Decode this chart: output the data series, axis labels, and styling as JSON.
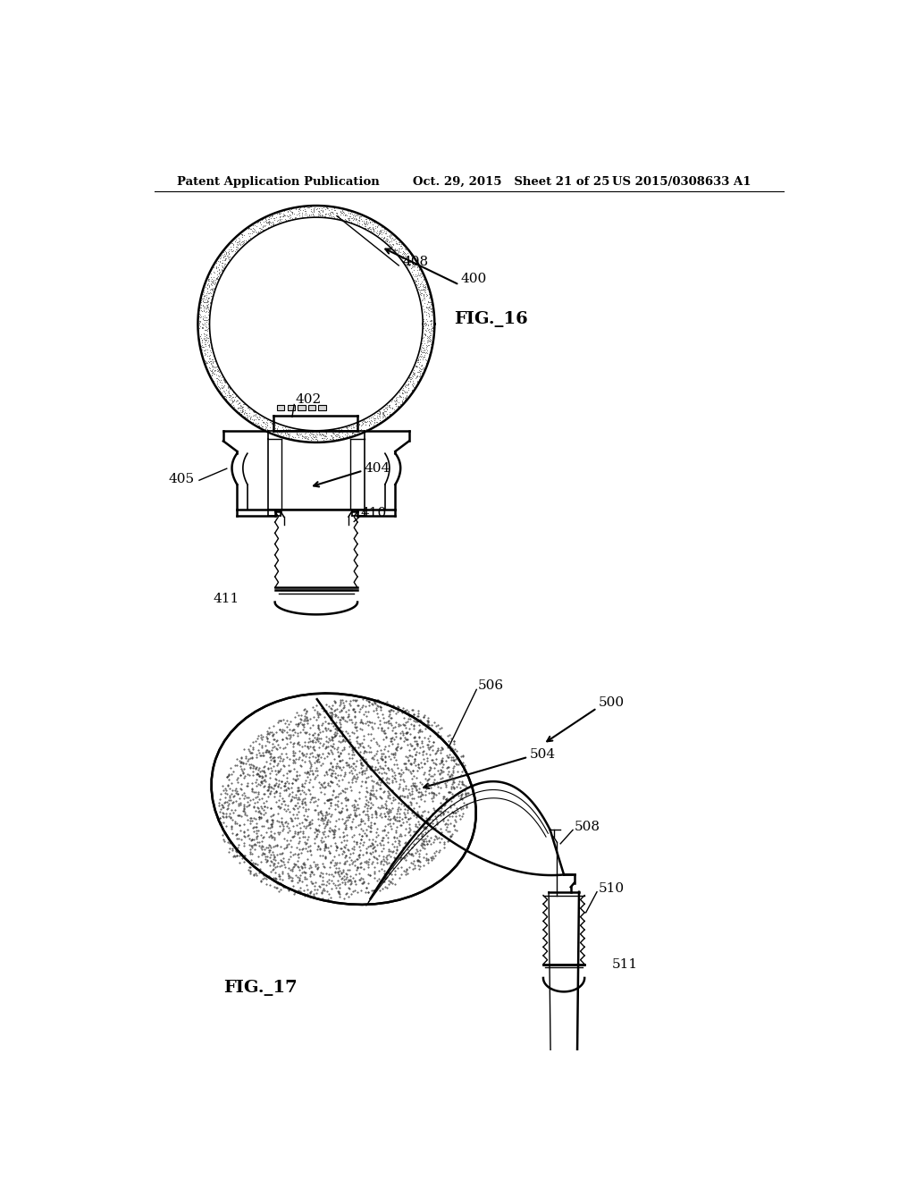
{
  "bg_color": "#ffffff",
  "header_left": "Patent Application Publication",
  "header_center": "Oct. 29, 2015   Sheet 21 of 25",
  "header_right": "US 2015/0308633 A1",
  "fig16_label": "FIG._16",
  "fig17_label": "FIG._17"
}
